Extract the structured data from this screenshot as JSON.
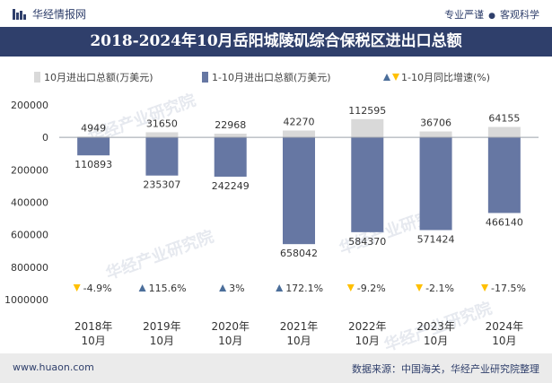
{
  "header": {
    "brand": "华经情报网",
    "tagline_left": "专业严谨",
    "tagline_sep": "●",
    "tagline_right": "客观科学"
  },
  "footer": {
    "url": "www.huaon.com",
    "source": "数据来源：中国海关，华经产业研究院整理"
  },
  "watermark": "华经产业研究院",
  "colors": {
    "brand": "#2f3f6b",
    "bar_monthly": "#d9d9d9",
    "bar_cumulative": "#6677a3",
    "growth_up": "#4b6e9a",
    "growth_down": "#ffc000"
  },
  "chart_data": {
    "type": "bar",
    "title": "2018-2024年10月岳阳城陵矶综合保税区进出口总额",
    "categories": [
      [
        "2018年",
        "10月"
      ],
      [
        "2019年",
        "10月"
      ],
      [
        "2020年",
        "10月"
      ],
      [
        "2021年",
        "10月"
      ],
      [
        "2022年",
        "10月"
      ],
      [
        "2023年",
        "10月"
      ],
      [
        "2024年",
        "10月"
      ]
    ],
    "series": [
      {
        "name": "10月进出口总额(万美元)",
        "values": [
          4949,
          31650,
          22968,
          42270,
          112595,
          36706,
          64155
        ],
        "labels": [
          "4949",
          "31650",
          "22968",
          "42270",
          "112595",
          "36706",
          "64155"
        ]
      },
      {
        "name": "1-10月进出口总额(万美元)",
        "values": [
          -110893,
          -235307,
          -242249,
          -658042,
          -584370,
          -571424,
          -466140
        ],
        "labels": [
          "110893",
          "235307",
          "242249",
          "658042",
          "584370",
          "571424",
          "466140"
        ]
      },
      {
        "name": "1-10月同比增速(%)",
        "values": [
          -4.9,
          115.6,
          3,
          172.1,
          -9.2,
          -2.1,
          -17.5
        ],
        "labels": [
          "-4.9%",
          "115.6%",
          "3%",
          "172.1%",
          "-9.2%",
          "-2.1%",
          "-17.5%"
        ]
      }
    ],
    "yticks": [
      200000,
      0,
      -200000,
      -400000,
      -600000,
      -800000,
      -1000000
    ],
    "ytick_labels": [
      "200000",
      "0",
      "200000",
      "400000",
      "600000",
      "800000",
      "1000000"
    ],
    "ylim": [
      -1000000,
      200000
    ],
    "legend": "top",
    "grid": false
  }
}
